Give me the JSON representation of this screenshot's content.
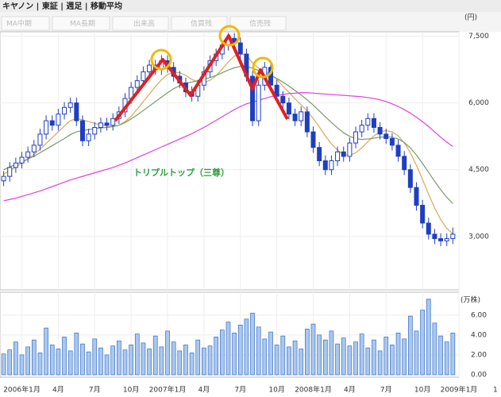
{
  "header": {
    "title": "キヤノン | 東証 | 週足 | 移動平均"
  },
  "toolbar": [
    "出来高",
    "信買残",
    "信売残"
  ],
  "chart_data": {
    "type": "candlestick",
    "x": [
      -1.5,
      -1,
      -0.5,
      0,
      0.5,
      1,
      1.5,
      2,
      2.5,
      3,
      3.5,
      4,
      4.5,
      5,
      5.5,
      6,
      6.5,
      7,
      7.5,
      8,
      8.5,
      9,
      9.5,
      10,
      10.5,
      11,
      11.5,
      12,
      12.5,
      13,
      13.5,
      14,
      14.5,
      15,
      15.5,
      16,
      16.5,
      17,
      17.5,
      18,
      18.5,
      19,
      19.5,
      20,
      20.5,
      21,
      21.5,
      22,
      22.5,
      23,
      23.5,
      24,
      24.5,
      25,
      25.5,
      26,
      26.5,
      27,
      27.5,
      28,
      28.5,
      29,
      29.5,
      30,
      30.5,
      31,
      31.5,
      32,
      32.5,
      33,
      33.5,
      34,
      34.5,
      35,
      35.5
    ],
    "ohlc": [
      [
        4250,
        4470,
        4130,
        4350
      ],
      [
        4350,
        4670,
        4230,
        4550
      ],
      [
        4550,
        4770,
        4430,
        4650
      ],
      [
        4650,
        4900,
        4530,
        4780
      ],
      [
        4780,
        5020,
        4660,
        4900
      ],
      [
        4900,
        5170,
        4780,
        5050
      ],
      [
        5050,
        5420,
        4930,
        5300
      ],
      [
        5300,
        5720,
        5180,
        5600
      ],
      [
        5600,
        5720,
        5380,
        5500
      ],
      [
        5500,
        5870,
        5380,
        5750
      ],
      [
        5750,
        6020,
        5630,
        5900
      ],
      [
        5900,
        6120,
        5780,
        6000
      ],
      [
        6000,
        6120,
        5480,
        5600
      ],
      [
        5600,
        5720,
        5030,
        5150
      ],
      [
        5150,
        5420,
        5030,
        5300
      ],
      [
        5300,
        5570,
        5180,
        5450
      ],
      [
        5450,
        5670,
        5330,
        5550
      ],
      [
        5550,
        5670,
        5380,
        5500
      ],
      [
        5500,
        5770,
        5380,
        5650
      ],
      [
        5650,
        5920,
        5530,
        5800
      ],
      [
        5800,
        6220,
        5680,
        6100
      ],
      [
        6100,
        6470,
        5980,
        6350
      ],
      [
        6350,
        6620,
        6230,
        6500
      ],
      [
        6500,
        6820,
        6380,
        6700
      ],
      [
        6700,
        6970,
        6580,
        6850
      ],
      [
        6850,
        6970,
        6630,
        6750
      ],
      [
        6750,
        7070,
        6630,
        6950
      ],
      [
        6950,
        7070,
        6680,
        6800
      ],
      [
        6800,
        6920,
        6480,
        6600
      ],
      [
        6600,
        6720,
        6330,
        6450
      ],
      [
        6450,
        6570,
        6130,
        6250
      ],
      [
        6250,
        6370,
        6030,
        6150
      ],
      [
        6150,
        6520,
        6030,
        6400
      ],
      [
        6400,
        6820,
        6280,
        6700
      ],
      [
        6700,
        7070,
        6580,
        6950
      ],
      [
        6950,
        7220,
        6830,
        7100
      ],
      [
        7100,
        7420,
        6980,
        7300
      ],
      [
        7300,
        7570,
        7180,
        7450
      ],
      [
        7450,
        7570,
        7230,
        7350
      ],
      [
        7350,
        7470,
        6980,
        7100
      ],
      [
        7100,
        7220,
        6480,
        6600
      ],
      [
        6600,
        6720,
        5480,
        5600
      ],
      [
        5600,
        6520,
        5480,
        6400
      ],
      [
        6400,
        6920,
        6280,
        6800
      ],
      [
        6800,
        6920,
        6280,
        6400
      ],
      [
        6400,
        6520,
        6030,
        6150
      ],
      [
        6150,
        6270,
        5880,
        6000
      ],
      [
        6000,
        6120,
        5630,
        5750
      ],
      [
        5750,
        5870,
        5480,
        5600
      ],
      [
        5600,
        5920,
        5480,
        5800
      ],
      [
        5800,
        5920,
        5230,
        5350
      ],
      [
        5350,
        5470,
        4880,
        5000
      ],
      [
        5000,
        5120,
        4580,
        4700
      ],
      [
        4700,
        4820,
        4380,
        4500
      ],
      [
        4500,
        4820,
        4380,
        4700
      ],
      [
        4700,
        5020,
        4580,
        4900
      ],
      [
        4900,
        5020,
        4680,
        4800
      ],
      [
        4800,
        5220,
        4680,
        5100
      ],
      [
        5100,
        5470,
        4980,
        5350
      ],
      [
        5350,
        5620,
        5230,
        5500
      ],
      [
        5500,
        5770,
        5380,
        5650
      ],
      [
        5650,
        5770,
        5330,
        5450
      ],
      [
        5450,
        5570,
        5180,
        5300
      ],
      [
        5300,
        5420,
        5080,
        5200
      ],
      [
        5200,
        5320,
        4930,
        5050
      ],
      [
        5050,
        5170,
        4680,
        4800
      ],
      [
        4800,
        4920,
        4380,
        4500
      ],
      [
        4500,
        4620,
        3980,
        4100
      ],
      [
        4100,
        4220,
        3580,
        3700
      ],
      [
        3700,
        3820,
        3180,
        3300
      ],
      [
        3300,
        3420,
        2930,
        3050
      ],
      [
        3050,
        3170,
        2830,
        2950
      ],
      [
        2950,
        3070,
        2780,
        2900
      ],
      [
        2900,
        3070,
        2780,
        2950
      ],
      [
        2950,
        3200,
        2830,
        3050
      ]
    ],
    "up_color": "#ffffff",
    "down_color": "#1f3fc0",
    "edge_color": "#1f3fc0",
    "series": [
      {
        "color": "#d6a95a",
        "values": [
          4400,
          4480,
          4560,
          4650,
          4740,
          4840,
          4960,
          5090,
          5220,
          5350,
          5480,
          5600,
          5650,
          5620,
          5580,
          5540,
          5510,
          5480,
          5470,
          5500,
          5580,
          5700,
          5860,
          6030,
          6200,
          6370,
          6520,
          6640,
          6690,
          6680,
          6620,
          6530,
          6470,
          6460,
          6510,
          6610,
          6760,
          6920,
          7050,
          7110,
          7070,
          6900,
          6780,
          6720,
          6640,
          6530,
          6380,
          6240,
          6090,
          5960,
          5820,
          5650,
          5460,
          5260,
          5080,
          4940,
          4840,
          4820,
          4880,
          4990,
          5130,
          5260,
          5350,
          5380,
          5350,
          5260,
          5100,
          4880,
          4600,
          4280,
          3950,
          3640,
          3380,
          3180,
          3060
        ]
      },
      {
        "name": "MA中期",
        "color": "#7a9a6a",
        "values": [
          4500,
          4560,
          4620,
          4680,
          4740,
          4800,
          4880,
          4960,
          5040,
          5120,
          5200,
          5290,
          5350,
          5380,
          5400,
          5420,
          5440,
          5450,
          5470,
          5500,
          5560,
          5640,
          5730,
          5830,
          5930,
          6030,
          6130,
          6230,
          6320,
          6390,
          6440,
          6470,
          6500,
          6530,
          6570,
          6620,
          6680,
          6740,
          6790,
          6820,
          6820,
          6780,
          6730,
          6680,
          6620,
          6550,
          6470,
          6380,
          6280,
          6180,
          6070,
          5950,
          5820,
          5690,
          5560,
          5440,
          5330,
          5250,
          5200,
          5180,
          5190,
          5210,
          5230,
          5240,
          5230,
          5190,
          5110,
          4990,
          4830,
          4640,
          4440,
          4240,
          4050,
          3880,
          3740
        ]
      },
      {
        "name": "MA長期",
        "color": "#e040e0",
        "values": [
          3800,
          3830,
          3860,
          3900,
          3940,
          3980,
          4020,
          4070,
          4120,
          4170,
          4220,
          4270,
          4310,
          4350,
          4390,
          4430,
          4470,
          4510,
          4550,
          4600,
          4650,
          4710,
          4770,
          4830,
          4890,
          4950,
          5010,
          5070,
          5130,
          5190,
          5250,
          5310,
          5380,
          5450,
          5530,
          5610,
          5690,
          5770,
          5850,
          5920,
          5980,
          6020,
          6060,
          6100,
          6140,
          6170,
          6190,
          6210,
          6220,
          6230,
          6230,
          6220,
          6210,
          6200,
          6190,
          6180,
          6170,
          6160,
          6150,
          6140,
          6120,
          6100,
          6070,
          6030,
          5980,
          5920,
          5850,
          5770,
          5680,
          5580,
          5470,
          5350,
          5230,
          5120,
          5020
        ]
      }
    ],
    "xlim": [
      -1.8,
      36
    ],
    "xticks": [
      {
        "value": 0,
        "label": "2006年1月"
      },
      {
        "value": 3,
        "label": "4月"
      },
      {
        "value": 6,
        "label": "7月"
      },
      {
        "value": 9,
        "label": "10月"
      },
      {
        "value": 12,
        "label": "2007年1月"
      },
      {
        "value": 15,
        "label": "4月"
      },
      {
        "value": 18,
        "label": "7月"
      },
      {
        "value": 21,
        "label": "10月"
      },
      {
        "value": 24,
        "label": "2008年1月"
      },
      {
        "value": 27,
        "label": "4月"
      },
      {
        "value": 30,
        "label": "7月"
      },
      {
        "value": 33,
        "label": "10月"
      },
      {
        "value": 36,
        "label": "2009年1月"
      },
      {
        "value": 39,
        "label": "1"
      }
    ],
    "ylim": [
      1800,
      7600
    ],
    "yticks": [
      {
        "value": 3000,
        "label": "3,000"
      },
      {
        "value": 4500,
        "label": "4,500"
      },
      {
        "value": 6000,
        "label": "6,000"
      },
      {
        "value": 7500,
        "label": "7,500"
      }
    ],
    "y_unit": "(円)",
    "annotation": "トリプルトップ（三尊）",
    "grid": true,
    "volume": {
      "name": "出来高",
      "unit": "(万株)",
      "color": "#a9c8ee",
      "edge_color": "#3a6fc4",
      "values": [
        2.1,
        2.5,
        3.3,
        2.0,
        2.8,
        3.5,
        2.2,
        4.7,
        3.0,
        2.6,
        3.8,
        2.4,
        4.2,
        3.1,
        2.3,
        3.6,
        2.7,
        2.0,
        2.9,
        3.4,
        2.5,
        3.0,
        4.1,
        3.2,
        2.6,
        3.9,
        2.8,
        4.4,
        3.3,
        2.4,
        3.0,
        2.2,
        3.5,
        2.7,
        2.9,
        3.8,
        4.5,
        5.3,
        4.2,
        5.0,
        5.6,
        6.2,
        4.8,
        3.6,
        4.3,
        3.0,
        3.9,
        2.8,
        3.4,
        2.6,
        4.6,
        5.1,
        4.0,
        3.5,
        4.4,
        3.1,
        3.7,
        2.9,
        3.3,
        4.1,
        2.7,
        3.5,
        2.4,
        3.8,
        3.0,
        4.2,
        3.6,
        5.9,
        4.4,
        6.5,
        7.6,
        5.2,
        3.9,
        3.3,
        4.2
      ],
      "ylim": [
        0,
        8.3
      ],
      "yticks": [
        {
          "value": 0,
          "label": "0.00"
        },
        {
          "value": 2,
          "label": "2.00"
        },
        {
          "value": 4,
          "label": "4.00"
        },
        {
          "value": 6,
          "label": "6.00"
        }
      ]
    }
  }
}
